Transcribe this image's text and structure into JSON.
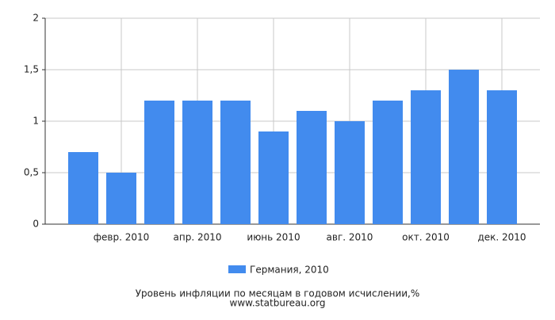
{
  "chart_data": {
    "type": "bar",
    "categories": [
      null,
      "февр. 2010",
      null,
      "апр. 2010",
      null,
      "июнь 2010",
      null,
      "авг. 2010",
      null,
      "окт. 2010",
      null,
      "дек. 2010"
    ],
    "series": [
      {
        "name": "Германия, 2010",
        "color": "#428bee",
        "values": [
          0.7,
          0.5,
          1.2,
          1.2,
          1.2,
          0.9,
          1.1,
          1.0,
          1.2,
          1.3,
          1.5,
          1.3
        ]
      }
    ],
    "ylim": [
      0,
      2
    ],
    "yticks": [
      0,
      {
        "value": 0.5,
        "label": "0,5"
      },
      1,
      {
        "value": 1.5,
        "label": "1,5"
      },
      2
    ],
    "grid": true,
    "xlabel": "Уровень инфляции по месяцам в годовом исчислении,%",
    "source": "www.statbureau.org"
  }
}
